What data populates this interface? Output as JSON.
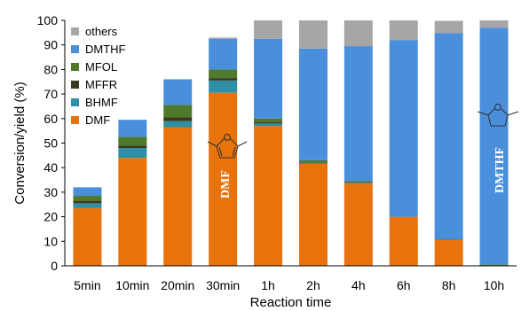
{
  "chart_data": {
    "type": "bar",
    "stacked": true,
    "xlabel": "Reaction time",
    "ylabel": "Conversion/yield (%)",
    "ylim": [
      0,
      100
    ],
    "yticks": [
      0,
      10,
      20,
      30,
      40,
      50,
      60,
      70,
      80,
      90,
      100
    ],
    "grid": false,
    "legend_position": "top-left",
    "categories": [
      "5min",
      "10min",
      "20min",
      "30min",
      "1h",
      "2h",
      "4h",
      "6h",
      "8h",
      "10h"
    ],
    "series": [
      {
        "name": "DMF",
        "color": "#E8720C",
        "values": [
          23.5,
          44,
          56.5,
          70.5,
          57,
          41.5,
          33.5,
          20,
          10.5,
          0
        ]
      },
      {
        "name": "BHMF",
        "color": "#2F8FA6",
        "values": [
          2,
          4,
          2.5,
          5,
          1,
          0.5,
          0.3,
          0,
          0,
          0
        ]
      },
      {
        "name": "MFFR",
        "color": "#39391F",
        "values": [
          1,
          1,
          1.5,
          1,
          0.5,
          0.2,
          0.2,
          0,
          0,
          0
        ]
      },
      {
        "name": "MFOL",
        "color": "#4E7A2A",
        "values": [
          2,
          3.5,
          5,
          3.5,
          1.5,
          0.8,
          0.5,
          0,
          0.3,
          0.5
        ]
      },
      {
        "name": "DMTHF",
        "color": "#4A8FDC",
        "values": [
          3.5,
          7,
          10.5,
          12.5,
          32.5,
          45.5,
          55,
          72,
          84,
          96.5
        ]
      },
      {
        "name": "others",
        "color": "#A6A6A6",
        "values": [
          0,
          0,
          0,
          0.5,
          7.5,
          11.5,
          10.5,
          8,
          5,
          3
        ]
      }
    ],
    "annotations": [
      {
        "text": "DMF",
        "category": "30min",
        "molecule": "furan-ring-icon"
      },
      {
        "text": "DMTHF",
        "category": "10h",
        "molecule": "tetrahydrofuran-ring-icon"
      }
    ]
  }
}
